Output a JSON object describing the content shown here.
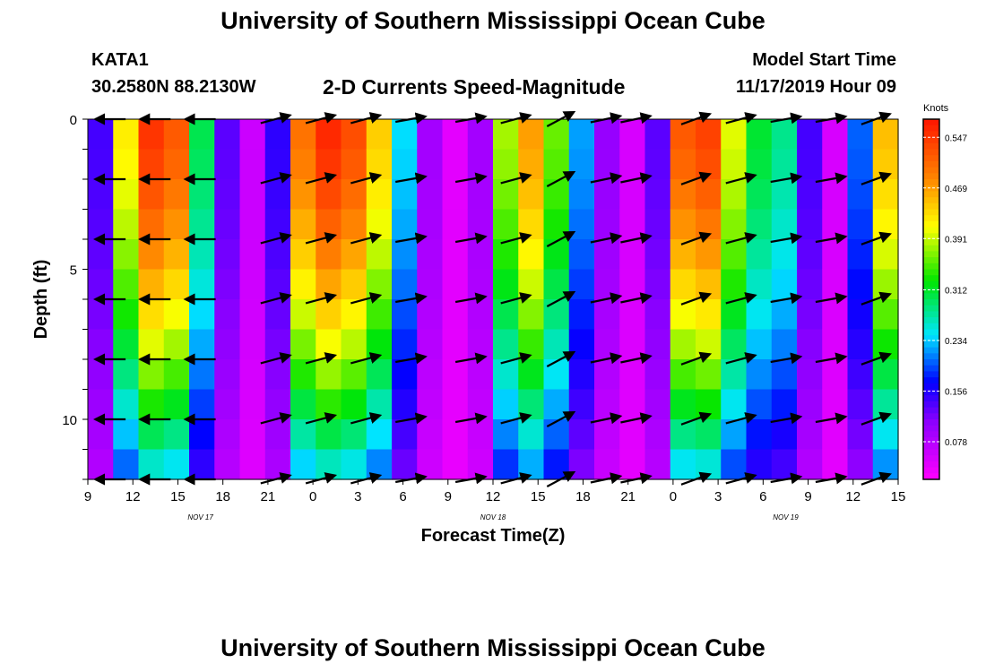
{
  "header": {
    "title": "University of Southern Mississippi Ocean Cube",
    "station": "KATA1",
    "coordinates": "30.2580N 88.2130W",
    "subtitle": "2-D Currents Speed-Magnitude",
    "model_start_label": "Model Start Time",
    "model_start_value": "11/17/2019 Hour 09"
  },
  "footer": {
    "title": "University of Southern Mississippi Ocean Cube"
  },
  "chart_data": {
    "type": "heatmap",
    "title": "2-D Currents Speed-Magnitude",
    "xlabel": "Forecast Time(Z)",
    "ylabel": "Depth (ft)",
    "x_range_hours": [
      0,
      54
    ],
    "y_range_ft": [
      0,
      12
    ],
    "x_ticks": [
      "9",
      "12",
      "15",
      "18",
      "21",
      "0",
      "3",
      "6",
      "9",
      "12",
      "15",
      "18",
      "21",
      "0",
      "3",
      "6",
      "9",
      "12",
      "15"
    ],
    "date_labels": [
      {
        "label": "NOV 17",
        "hour": 7.5
      },
      {
        "label": "NOV 18",
        "hour": 27
      },
      {
        "label": "NOV 19",
        "hour": 46.5
      }
    ],
    "y_ticks": [
      0,
      5,
      10
    ],
    "colorbar": {
      "unit": "Knots",
      "tick_labels": [
        "0.547",
        "0.469",
        "0.391",
        "0.312",
        "0.234",
        "0.156",
        "0.078"
      ],
      "tick_values": [
        0.547,
        0.469,
        0.391,
        0.312,
        0.234,
        0.156,
        0.078
      ],
      "vmin": 0.02,
      "vmax": 0.575
    },
    "surface_speed_series": [
      0.14,
      0.42,
      0.55,
      0.52,
      0.3,
      0.13,
      0.06,
      0.15,
      0.5,
      0.56,
      0.53,
      0.44,
      0.24,
      0.09,
      0.04,
      0.09,
      0.38,
      0.47,
      0.36,
      0.22,
      0.1,
      0.05,
      0.13,
      0.52,
      0.54,
      0.4,
      0.31,
      0.28,
      0.14,
      0.05,
      0.2,
      0.45
    ],
    "vector_hours": [
      1.5,
      4.5,
      7.5,
      12.5,
      15.5,
      18.5,
      21.5,
      25.5,
      28.5,
      31.5,
      34.5,
      36.5,
      40.5,
      43.5,
      46.5,
      49.5,
      52.5
    ],
    "vector_depths_ft": [
      0,
      2,
      4,
      6,
      8,
      10,
      12
    ],
    "vector_direction_deg": [
      180,
      180,
      180,
      15,
      15,
      15,
      10,
      10,
      15,
      28,
      12,
      12,
      20,
      15,
      10,
      10,
      20
    ]
  }
}
